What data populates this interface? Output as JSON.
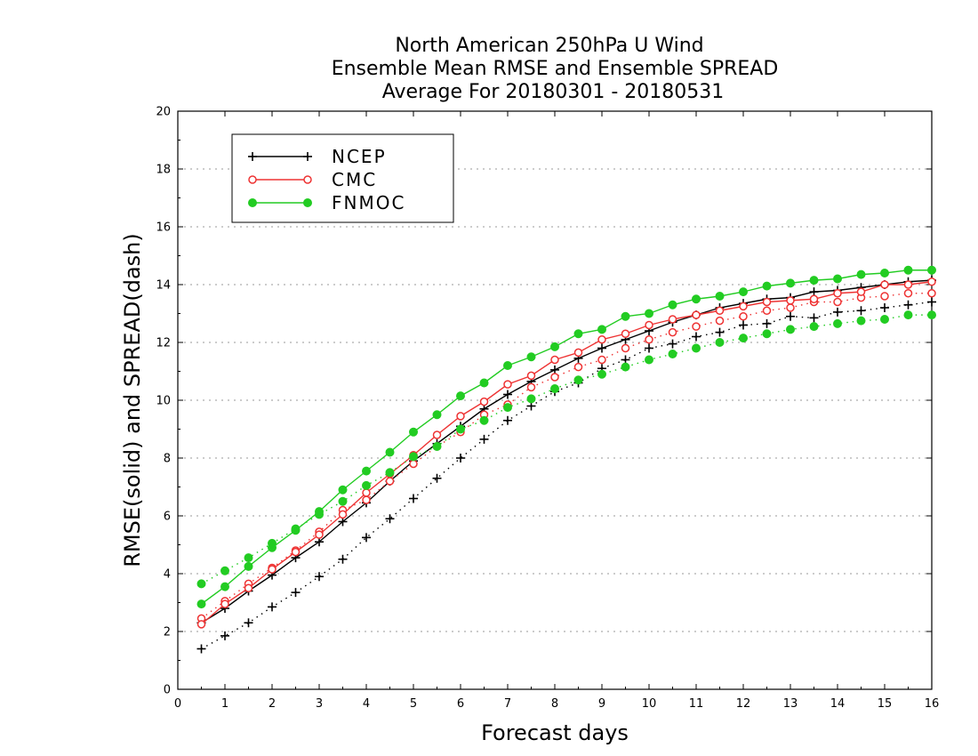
{
  "chart_data": {
    "type": "line",
    "title_lines": [
      "North American 250hPa U Wind",
      "Ensemble Mean RMSE and Ensemble SPREAD",
      "Average For 20180301 - 20180531"
    ],
    "xlabel": "Forecast days",
    "ylabel": "RMSE(solid) and SPREAD(dash)",
    "xlim": [
      0,
      16
    ],
    "ylim": [
      0,
      20
    ],
    "x_ticks": [
      "0",
      "1",
      "2",
      "3",
      "4",
      "5",
      "6",
      "7",
      "8",
      "9",
      "10",
      "11",
      "12",
      "13",
      "14",
      "15",
      "16"
    ],
    "y_ticks": [
      "0",
      "2",
      "4",
      "6",
      "8",
      "10",
      "12",
      "14",
      "16",
      "18",
      "20"
    ],
    "grid": "dotted horizontal",
    "legend_position": "top-left",
    "x": [
      0.5,
      1,
      1.5,
      2,
      2.5,
      3,
      3.5,
      4,
      4.5,
      5,
      5.5,
      6,
      6.5,
      7,
      7.5,
      8,
      8.5,
      9,
      9.5,
      10,
      10.5,
      11,
      11.5,
      12,
      12.5,
      13,
      13.5,
      14,
      14.5,
      15,
      15.5,
      16
    ],
    "series": [
      {
        "name": "NCEP",
        "color": "#000000",
        "marker": "plus",
        "rmse": [
          2.3,
          2.8,
          3.4,
          3.95,
          4.55,
          5.1,
          5.8,
          6.45,
          7.2,
          7.9,
          8.5,
          9.1,
          9.7,
          10.2,
          10.65,
          11.05,
          11.45,
          11.8,
          12.1,
          12.4,
          12.7,
          12.95,
          13.2,
          13.35,
          13.5,
          13.55,
          13.75,
          13.8,
          13.9,
          14.0,
          14.1,
          14.15
        ],
        "spread": [
          1.4,
          1.85,
          2.3,
          2.85,
          3.35,
          3.9,
          4.5,
          5.25,
          5.9,
          6.6,
          7.3,
          8.0,
          8.65,
          9.3,
          9.8,
          10.3,
          10.6,
          11.1,
          11.4,
          11.8,
          11.95,
          12.2,
          12.35,
          12.6,
          12.65,
          12.9,
          12.85,
          13.05,
          13.1,
          13.2,
          13.3,
          13.4
        ]
      },
      {
        "name": "CMC",
        "color": "#ee3333",
        "marker": "open-circle",
        "rmse": [
          2.25,
          2.95,
          3.5,
          4.15,
          4.75,
          5.35,
          6.05,
          6.8,
          7.45,
          8.1,
          8.8,
          9.45,
          9.95,
          10.55,
          10.85,
          11.4,
          11.65,
          12.1,
          12.3,
          12.6,
          12.8,
          12.95,
          13.1,
          13.25,
          13.4,
          13.45,
          13.5,
          13.7,
          13.75,
          14.0,
          14.0,
          14.1
        ],
        "spread": [
          2.45,
          3.05,
          3.65,
          4.2,
          4.8,
          5.45,
          6.2,
          6.55,
          7.2,
          7.8,
          8.4,
          8.9,
          9.5,
          9.85,
          10.45,
          10.8,
          11.15,
          11.4,
          11.8,
          12.1,
          12.35,
          12.55,
          12.75,
          12.9,
          13.1,
          13.2,
          13.4,
          13.4,
          13.55,
          13.6,
          13.7,
          13.7
        ]
      },
      {
        "name": "FNMOC",
        "color": "#22cc22",
        "marker": "filled-circle",
        "rmse": [
          2.95,
          3.55,
          4.25,
          4.9,
          5.5,
          6.15,
          6.9,
          7.55,
          8.2,
          8.9,
          9.5,
          10.15,
          10.6,
          11.2,
          11.5,
          11.85,
          12.3,
          12.45,
          12.9,
          13.0,
          13.3,
          13.5,
          13.6,
          13.75,
          13.95,
          14.05,
          14.15,
          14.2,
          14.35,
          14.4,
          14.5,
          14.5
        ],
        "spread": [
          3.65,
          4.1,
          4.55,
          5.05,
          5.55,
          6.05,
          6.5,
          7.05,
          7.5,
          8.05,
          8.4,
          9.0,
          9.3,
          9.75,
          10.05,
          10.4,
          10.7,
          10.9,
          11.15,
          11.4,
          11.6,
          11.8,
          12.0,
          12.15,
          12.3,
          12.45,
          12.55,
          12.65,
          12.75,
          12.8,
          12.95,
          12.95
        ]
      }
    ]
  }
}
